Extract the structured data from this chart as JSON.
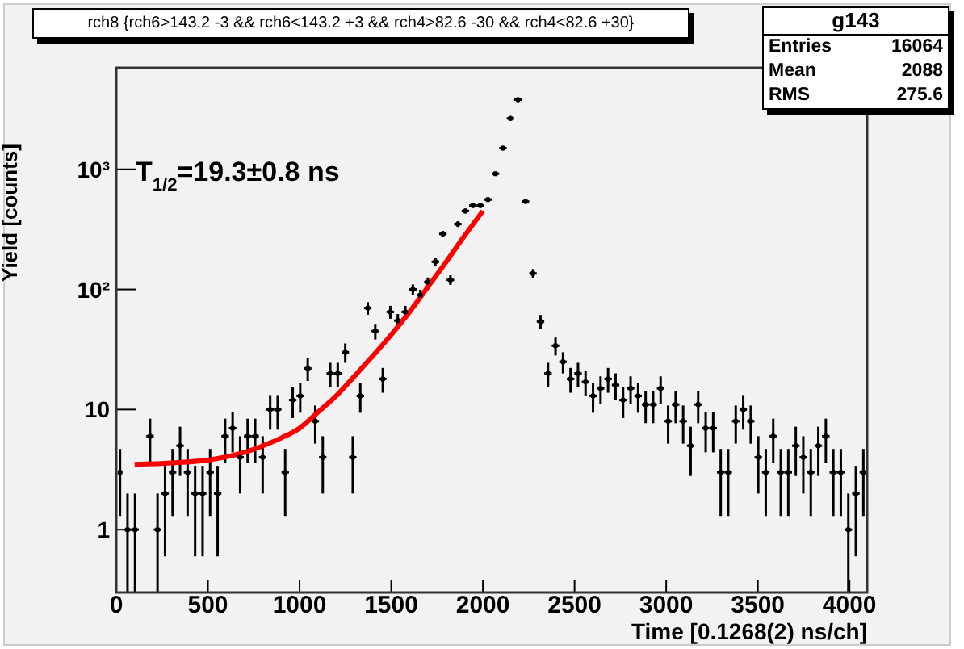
{
  "chart_data": {
    "type": "scatter",
    "title": "rch8 {rch6>143.2 -3 && rch6<143.2 +3 && rch4>82.6 -30 && rch4<82.6 +30}",
    "xlabel": "Time [0.1268(2) ns/ch]",
    "ylabel": "Yield [counts]",
    "annotations": [
      "T$_{1/2}$=19.3±0.8 ns",
      "g143",
      "Entries",
      "16064",
      "Mean",
      "2088",
      "RMS",
      "275.6"
    ],
    "xlim": [
      0,
      4096
    ],
    "xticks": [
      0,
      500,
      1000,
      1500,
      2000,
      2500,
      3000,
      3500,
      4000
    ],
    "ylim": [
      0.3,
      7000
    ],
    "yticks": [
      {
        "value": 1,
        "label": "1"
      },
      {
        "value": 10,
        "label": "10"
      },
      {
        "value": 100,
        "label": "10²"
      },
      {
        "value": 1000,
        "label": "10³"
      }
    ],
    "log": "y",
    "marker": "circle",
    "series": [
      {
        "color": "#000000",
        "x": [
          20.48,
          61.44,
          102.4,
          143.36,
          184.32,
          225.28,
          266.24,
          307.2,
          348.16,
          389.12,
          430.08,
          471.04,
          512,
          552.96,
          593.92,
          634.88,
          675.84,
          716.8,
          757.76,
          798.72,
          839.68,
          880.64,
          921.6,
          962.56,
          1003.52,
          1044.48,
          1085.44,
          1126.4,
          1167.36,
          1208.32,
          1249.28,
          1290.24,
          1331.2,
          1372.16,
          1413.12,
          1454.08,
          1495.04,
          1536,
          1576.96,
          1617.92,
          1658.88,
          1699.84,
          1740.8,
          1781.76,
          1822.72,
          1863.68,
          1904.64,
          1945.6,
          1986.56,
          2027.52,
          2068.48,
          2109.44,
          2150.4,
          2191.36,
          2232.32,
          2273.28,
          2314.24,
          2355.2,
          2396.16,
          2437.12,
          2478.08,
          2519.04,
          2560,
          2600.96,
          2641.92,
          2682.88,
          2723.84,
          2764.8,
          2805.76,
          2846.72,
          2887.68,
          2928.64,
          2969.6,
          3010.56,
          3051.52,
          3092.48,
          3133.44,
          3174.4,
          3215.36,
          3256.32,
          3297.28,
          3338.24,
          3379.2,
          3420.16,
          3461.12,
          3502.08,
          3543.04,
          3584,
          3624.96,
          3665.92,
          3706.88,
          3747.84,
          3788.8,
          3829.76,
          3870.72,
          3911.68,
          3952.64,
          3993.6,
          4034.56,
          4075.52
        ],
        "values": [
          3,
          1,
          1,
          null,
          6,
          1,
          2,
          3,
          5,
          3,
          2,
          2,
          3,
          2,
          6,
          7,
          4,
          6,
          6,
          4,
          10,
          10,
          3,
          12,
          13,
          22,
          8,
          4,
          20,
          20,
          30,
          4,
          13,
          70,
          45,
          18,
          65,
          55,
          65,
          100,
          90,
          115,
          170,
          290,
          120,
          350,
          450,
          500,
          500,
          560,
          920,
          1500,
          2650,
          3800,
          540,
          136,
          54,
          20,
          34,
          25,
          18,
          20,
          17,
          13,
          15,
          18,
          16,
          12,
          15,
          13,
          11,
          11,
          15,
          8,
          11,
          8,
          5,
          11,
          7,
          7,
          3,
          3,
          8,
          10,
          8,
          4,
          3,
          6,
          3,
          3,
          5,
          4,
          3,
          5,
          6,
          3,
          3,
          1,
          2,
          3
        ],
        "errors": [
          1.7,
          [
            0.3,
            2
          ],
          [
            0.3,
            2
          ],
          null,
          2.4,
          [
            0.3,
            2
          ],
          1.4,
          1.7,
          2.2,
          1.7,
          1.4,
          1.4,
          1.7,
          1.4,
          2.4,
          2.6,
          2,
          2.4,
          2.4,
          2,
          3.2,
          3.2,
          1.7,
          3.5,
          3.6,
          4.7,
          2.8,
          2,
          4.5,
          4.5,
          5.5,
          2,
          3.6,
          8.4,
          6.7,
          4.2,
          8,
          7.4,
          8,
          10,
          9.5,
          10.7,
          13,
          17,
          11,
          19,
          21,
          22,
          22,
          24,
          30,
          39,
          51,
          62,
          23,
          12,
          7.3,
          4.5,
          5.8,
          5,
          4.2,
          4.5,
          4.1,
          3.6,
          3.9,
          4.2,
          4,
          3.5,
          3.9,
          3.6,
          3.3,
          3.3,
          3.9,
          2.8,
          3.3,
          2.8,
          2.2,
          3.3,
          2.6,
          2.6,
          1.7,
          1.7,
          2.8,
          3.2,
          2.8,
          2,
          1.7,
          2.4,
          1.7,
          1.7,
          2.2,
          2,
          1.7,
          2.2,
          2.4,
          1.7,
          1.7,
          [
            0.3,
            2
          ],
          1.4,
          1.7
        ],
        "xerrors": [
          null,
          20.48,
          20.48,
          null,
          20.48,
          20.48,
          20.48,
          20.48,
          20.48,
          20.48,
          20.48,
          20.48,
          20.48,
          20.48,
          20.48,
          20.48,
          20.48,
          20.48,
          20.48,
          20.48,
          20.48,
          20.48,
          20.48,
          20.48,
          20.48,
          20.48,
          20.48,
          20.48,
          20.48,
          20.48,
          20.48,
          20.48,
          20.48,
          20.48,
          20.48,
          20.48,
          20.48,
          20.48,
          20.48,
          20.48,
          20.48,
          20.48,
          20.48,
          20.48,
          20.48,
          20.48,
          20.48,
          20.48,
          20.48,
          20.48,
          20.48,
          20.48,
          20.48,
          20.48,
          20.48,
          20.48,
          20.48,
          20.48,
          20.48,
          20.48,
          20.48,
          20.48,
          20.48,
          20.48,
          20.48,
          20.48,
          20.48,
          20.48,
          20.48,
          20.48,
          20.48,
          20.48,
          20.48,
          20.48,
          20.48,
          20.48,
          20.48,
          20.48,
          20.48,
          20.48,
          20.48,
          20.48,
          20.48,
          20.48,
          20.48,
          20.48,
          20.48,
          20.48,
          20.48,
          20.48,
          20.48,
          20.48,
          20.48,
          20.48,
          20.48,
          20.48,
          20.48,
          20.48,
          20.48,
          20.48
        ]
      },
      {
        "type": "line",
        "marker": "none",
        "color": "#ff0000",
        "x": [
          100,
          300,
          500,
          700,
          800,
          900,
          1000,
          1100,
          1200,
          1300,
          1400,
          1500,
          1600,
          1700,
          1800,
          1900,
          2000
        ],
        "values": [
          3.5,
          3.6,
          3.8,
          4.4,
          5,
          5.8,
          7,
          9.5,
          13,
          19,
          28,
          42,
          65,
          105,
          170,
          280,
          450
        ]
      }
    ]
  }
}
